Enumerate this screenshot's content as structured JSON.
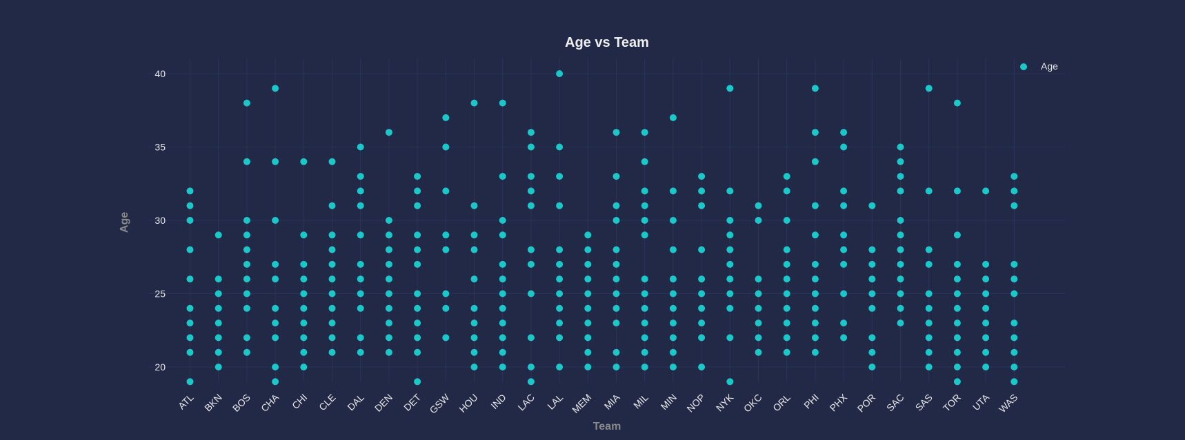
{
  "chart_data": {
    "type": "scatter",
    "title": "Age vs Team",
    "xlabel": "Team",
    "ylabel": "Age",
    "ylim": [
      18,
      40.5
    ],
    "yticks": [
      20,
      25,
      30,
      35,
      40
    ],
    "grid": true,
    "legend_position": "top-right",
    "categories": [
      "ATL",
      "BKN",
      "BOS",
      "CHA",
      "CHI",
      "CLE",
      "DAL",
      "DEN",
      "DET",
      "GSW",
      "HOU",
      "IND",
      "LAC",
      "LAL",
      "MEM",
      "MIA",
      "MIL",
      "MIN",
      "NOP",
      "NYK",
      "OKC",
      "ORL",
      "PHI",
      "PHX",
      "POR",
      "SAC",
      "SAS",
      "TOR",
      "UTA",
      "WAS"
    ],
    "series": [
      {
        "name": "Age",
        "color": "#1bc7c9",
        "points": {
          "ATL": [
            19,
            21,
            22,
            23,
            24,
            26,
            28,
            30,
            31,
            32
          ],
          "BKN": [
            20,
            21,
            22,
            23,
            24,
            25,
            26,
            29
          ],
          "BOS": [
            21,
            22,
            24,
            25,
            26,
            27,
            28,
            29,
            30,
            34,
            38
          ],
          "CHA": [
            19,
            20,
            22,
            23,
            24,
            26,
            27,
            30,
            34,
            39
          ],
          "CHI": [
            20,
            21,
            22,
            23,
            24,
            25,
            26,
            27,
            29,
            34
          ],
          "CLE": [
            21,
            22,
            23,
            24,
            25,
            26,
            27,
            28,
            29,
            31,
            34
          ],
          "DAL": [
            21,
            22,
            24,
            25,
            26,
            27,
            29,
            31,
            32,
            33,
            35
          ],
          "DEN": [
            21,
            22,
            23,
            24,
            25,
            26,
            27,
            28,
            29,
            30,
            36
          ],
          "DET": [
            19,
            21,
            22,
            23,
            24,
            25,
            27,
            28,
            29,
            31,
            32,
            33
          ],
          "GSW": [
            22,
            24,
            25,
            28,
            29,
            32,
            35,
            37
          ],
          "HOU": [
            20,
            21,
            22,
            23,
            24,
            26,
            28,
            29,
            31,
            38
          ],
          "IND": [
            20,
            21,
            22,
            23,
            24,
            25,
            26,
            27,
            29,
            30,
            33,
            38
          ],
          "LAC": [
            19,
            20,
            22,
            25,
            27,
            28,
            31,
            32,
            33,
            35,
            36
          ],
          "LAL": [
            20,
            22,
            23,
            24,
            25,
            26,
            27,
            28,
            31,
            33,
            35,
            40
          ],
          "MEM": [
            20,
            21,
            22,
            23,
            24,
            25,
            26,
            27,
            28,
            29
          ],
          "MIA": [
            20,
            21,
            23,
            24,
            25,
            26,
            27,
            28,
            30,
            31,
            33,
            36
          ],
          "MIL": [
            20,
            21,
            22,
            23,
            24,
            25,
            26,
            29,
            30,
            31,
            32,
            34,
            36
          ],
          "MIN": [
            20,
            21,
            22,
            23,
            24,
            25,
            26,
            28,
            30,
            32,
            37
          ],
          "NOP": [
            20,
            22,
            23,
            24,
            25,
            26,
            28,
            31,
            32,
            33
          ],
          "NYK": [
            19,
            22,
            24,
            25,
            26,
            27,
            28,
            29,
            30,
            32,
            39
          ],
          "OKC": [
            21,
            22,
            23,
            24,
            25,
            26,
            30,
            31
          ],
          "ORL": [
            21,
            22,
            23,
            24,
            25,
            26,
            27,
            28,
            30,
            32,
            33
          ],
          "PHI": [
            21,
            22,
            23,
            24,
            25,
            26,
            27,
            29,
            31,
            34,
            36,
            39
          ],
          "PHX": [
            22,
            23,
            25,
            27,
            28,
            29,
            31,
            32,
            35,
            36
          ],
          "POR": [
            20,
            21,
            22,
            24,
            25,
            26,
            27,
            28,
            31
          ],
          "SAC": [
            23,
            24,
            25,
            26,
            27,
            28,
            29,
            30,
            32,
            33,
            34,
            35
          ],
          "SAS": [
            20,
            21,
            22,
            23,
            24,
            25,
            27,
            28,
            32,
            39
          ],
          "TOR": [
            19,
            20,
            21,
            22,
            23,
            24,
            25,
            26,
            27,
            29,
            32,
            38
          ],
          "UTA": [
            20,
            21,
            22,
            23,
            24,
            25,
            26,
            27,
            32
          ],
          "WAS": [
            19,
            20,
            21,
            22,
            23,
            25,
            26,
            27,
            31,
            32,
            33
          ]
        }
      }
    ]
  }
}
